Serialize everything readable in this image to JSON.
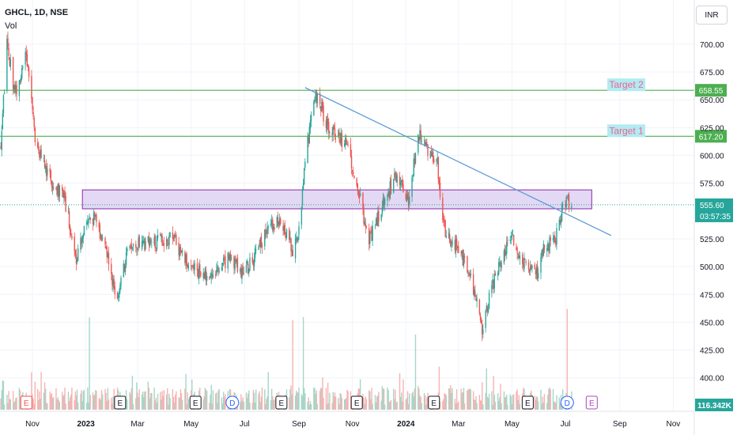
{
  "header": {
    "symbol": "GHCL, 1D, NSE",
    "volume_label": "Vol"
  },
  "currency_button": "INR",
  "colors": {
    "up": "#26a69a",
    "down": "#ef5350",
    "vol_up": "#a5d6c8",
    "vol_down": "#f7b3b2",
    "zone_fill": "#d9ccf0",
    "zone_border": "#8e24aa",
    "target_line": "#4caf50",
    "trend_line": "#5b9bd5",
    "target_label_bg": "#b2ebf2",
    "target_label_text": "#f06292",
    "current_price_bg": "#26a69a"
  },
  "axis": {
    "price_ticks": [
      "700.00",
      "675.00",
      "650.00",
      "625.00",
      "600.00",
      "575.00",
      "525.00",
      "500.00",
      "475.00",
      "450.00",
      "425.00",
      "400.00"
    ],
    "time_ticks": [
      "Nov",
      "2023",
      "Mar",
      "May",
      "Jul",
      "Sep",
      "Nov",
      "2024",
      "Mar",
      "May",
      "Jul",
      "Sep",
      "Nov"
    ]
  },
  "chart_data": {
    "type": "candlestick",
    "ylim": [
      385,
      715
    ],
    "x_range": [
      "2022-09-25",
      "2024-11-25"
    ],
    "targets": [
      {
        "label": "Target 2",
        "value": 658.55,
        "badge": "658.55"
      },
      {
        "label": "Target 1",
        "value": 617.2,
        "badge": "617.20"
      }
    ],
    "current_price": {
      "value": 555.6,
      "badge": "555.60",
      "countdown": "03:57:35"
    },
    "zone": {
      "from": "2022-12-28",
      "to": "2024-07-31",
      "low": 552,
      "high": 569
    },
    "trendline": {
      "start": [
        "2023-09-08",
        661
      ],
      "end": [
        "2024-08-22",
        528
      ]
    },
    "volume_last": "116.342K",
    "events": [
      {
        "type": "E",
        "date": "2022-10-25"
      },
      {
        "type": "E",
        "date": "2023-02-09"
      },
      {
        "type": "E",
        "date": "2023-05-06"
      },
      {
        "type": "D",
        "date": "2023-06-17"
      },
      {
        "type": "E",
        "date": "2023-08-12"
      },
      {
        "type": "E",
        "date": "2023-11-06"
      },
      {
        "type": "E",
        "date": "2024-02-02"
      },
      {
        "type": "E",
        "date": "2024-05-19"
      },
      {
        "type": "D",
        "date": "2024-07-03"
      },
      {
        "type": "E",
        "date": "2024-07-31"
      }
    ],
    "price_path": [
      [
        "2022-09-26",
        610
      ],
      [
        "2022-10-03",
        700
      ],
      [
        "2022-10-12",
        655
      ],
      [
        "2022-10-25",
        690
      ],
      [
        "2022-11-05",
        610
      ],
      [
        "2022-11-20",
        580
      ],
      [
        "2022-12-05",
        565
      ],
      [
        "2022-12-12",
        545
      ],
      [
        "2022-12-20",
        505
      ],
      [
        "2023-01-01",
        540
      ],
      [
        "2023-01-10",
        545
      ],
      [
        "2023-01-25",
        512
      ],
      [
        "2023-02-05",
        470
      ],
      [
        "2023-02-20",
        520
      ],
      [
        "2023-03-10",
        520
      ],
      [
        "2023-04-10",
        525
      ],
      [
        "2023-04-28",
        505
      ],
      [
        "2023-05-10",
        495
      ],
      [
        "2023-05-25",
        488
      ],
      [
        "2023-06-15",
        512
      ],
      [
        "2023-06-28",
        492
      ],
      [
        "2023-07-10",
        505
      ],
      [
        "2023-07-25",
        530
      ],
      [
        "2023-08-10",
        545
      ],
      [
        "2023-08-25",
        515
      ],
      [
        "2023-09-01",
        530
      ],
      [
        "2023-09-08",
        600
      ],
      [
        "2023-09-20",
        655
      ],
      [
        "2023-10-05",
        625
      ],
      [
        "2023-10-25",
        610
      ],
      [
        "2023-11-05",
        580
      ],
      [
        "2023-11-20",
        522
      ],
      [
        "2023-12-05",
        555
      ],
      [
        "2023-12-20",
        580
      ],
      [
        "2024-01-05",
        560
      ],
      [
        "2024-01-15",
        620
      ],
      [
        "2024-01-30",
        600
      ],
      [
        "2024-02-05",
        600
      ],
      [
        "2024-02-13",
        535
      ],
      [
        "2024-02-20",
        525
      ],
      [
        "2024-03-05",
        510
      ],
      [
        "2024-03-20",
        475
      ],
      [
        "2024-03-28",
        440
      ],
      [
        "2024-04-05",
        470
      ],
      [
        "2024-04-15",
        500
      ],
      [
        "2024-04-30",
        525
      ],
      [
        "2024-05-15",
        505
      ],
      [
        "2024-05-28",
        490
      ],
      [
        "2024-06-05",
        515
      ],
      [
        "2024-06-20",
        525
      ],
      [
        "2024-06-28",
        555
      ],
      [
        "2024-07-03",
        560
      ],
      [
        "2024-07-08",
        555.6
      ]
    ]
  }
}
